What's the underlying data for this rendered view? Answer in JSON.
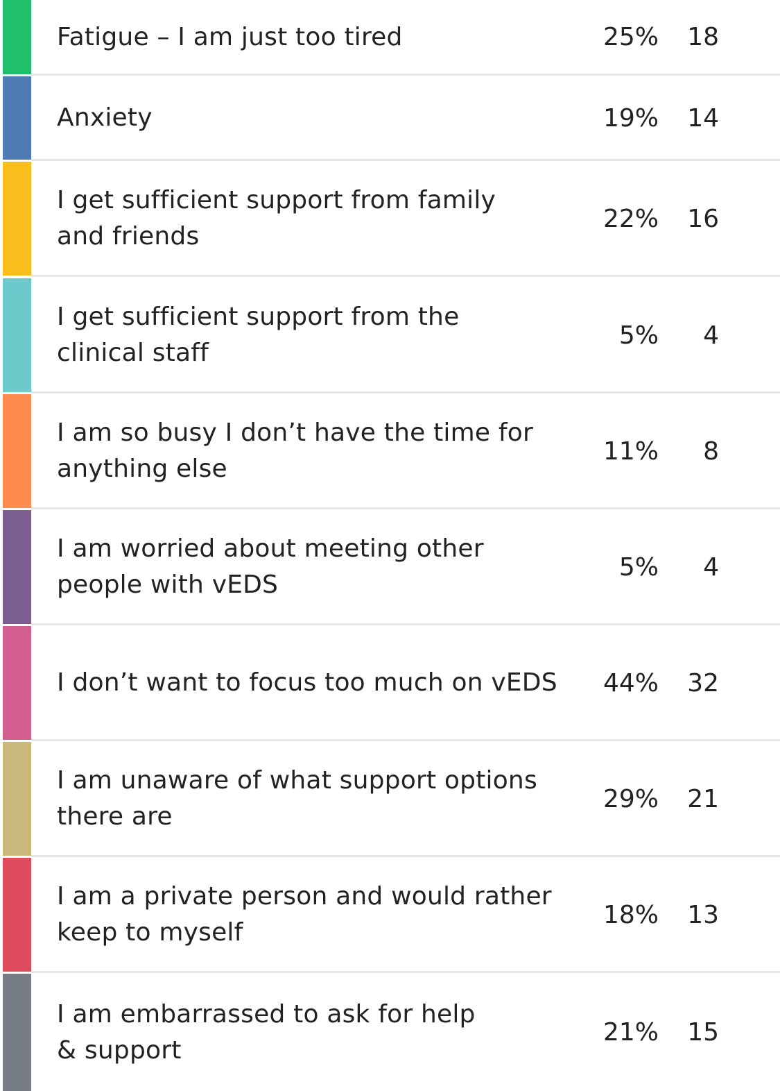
{
  "chart_data": {
    "type": "table",
    "rows": [
      {
        "label": "Fatigue – I am just too tired",
        "percent": "25%",
        "count": "18",
        "color": "#1fbf6b"
      },
      {
        "label": "Anxiety",
        "percent": "19%",
        "count": "14",
        "color": "#507cb6"
      },
      {
        "label": "I get sufficient support from family and friends",
        "percent": "22%",
        "count": "16",
        "color": "#f9be1c"
      },
      {
        "label": "I get sufficient support from the clinical staff",
        "percent": "5%",
        "count": "4",
        "color": "#6dcacb"
      },
      {
        "label": "I am so busy I don’t have the time for anything else",
        "percent": "11%",
        "count": "8",
        "color": "#ff8b4f"
      },
      {
        "label": "I am worried about meeting other people with vEDS",
        "percent": "5%",
        "count": "4",
        "color": "#7d5e90"
      },
      {
        "label": "I don’t want to focus too much on vEDS",
        "percent": "44%",
        "count": "32",
        "color": "#d25f90"
      },
      {
        "label": "I am unaware of what support options there are",
        "percent": "29%",
        "count": "21",
        "color": "#c9b97c"
      },
      {
        "label": "I am a private person and would rather keep to myself",
        "percent": "18%",
        "count": "13",
        "color": "#de4b5c"
      },
      {
        "label": "I am embarrassed to ask for help & support",
        "percent": "21%",
        "count": "15",
        "color": "#767d85"
      }
    ],
    "values": [
      25,
      19,
      22,
      5,
      11,
      5,
      44,
      29,
      18,
      21
    ],
    "counts": [
      18,
      14,
      16,
      4,
      8,
      4,
      32,
      21,
      13,
      15
    ]
  }
}
